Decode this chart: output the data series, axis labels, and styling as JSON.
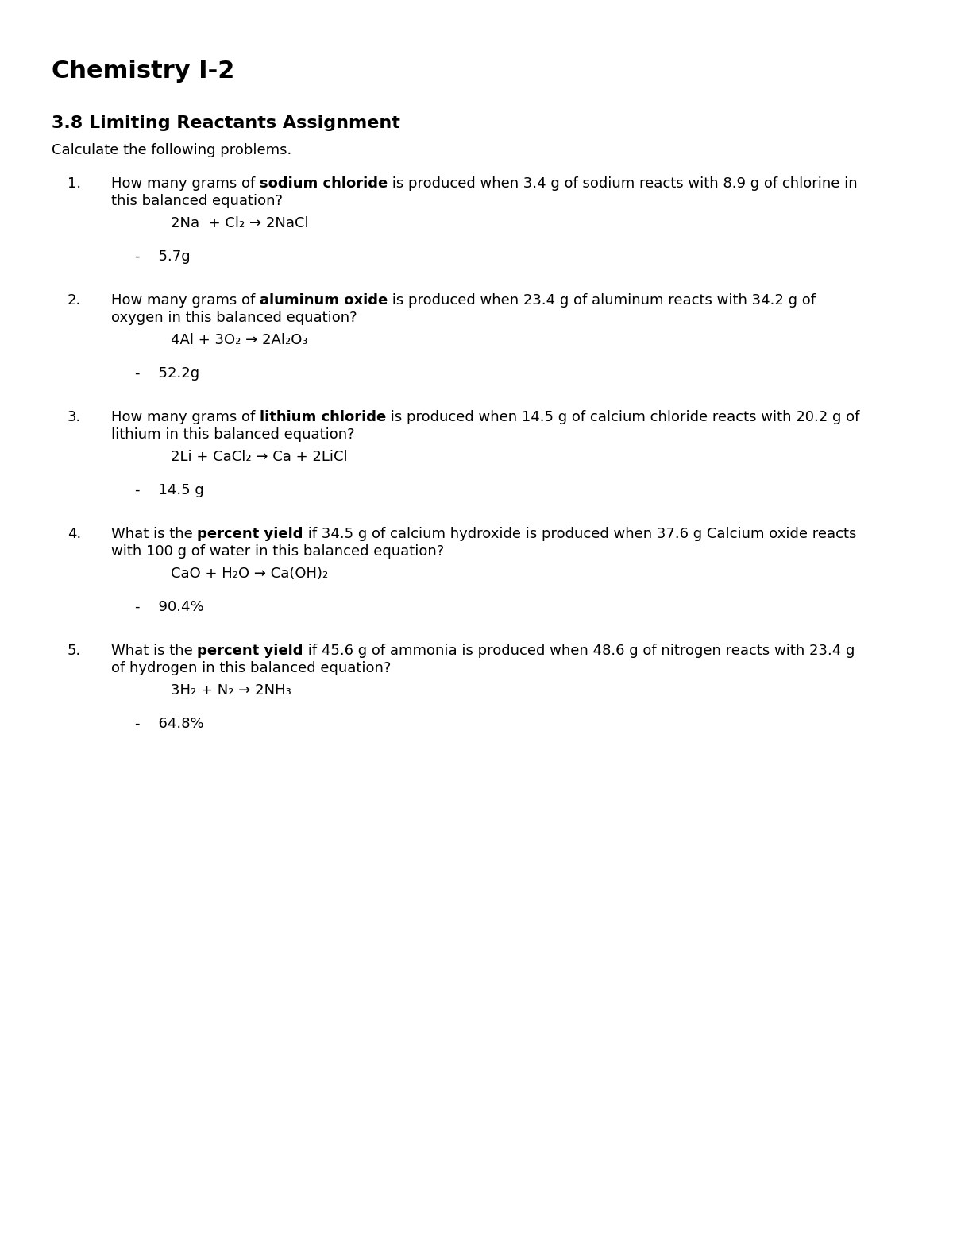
{
  "title": "Chemistry I-2",
  "subtitle": "3.8 Limiting Reactants Assignment",
  "intro": "Calculate the following problems.",
  "background": "#ffffff",
  "text_color": "#000000",
  "questions": [
    {
      "number": "1.",
      "q_line1": [
        {
          "text": "How many grams of ",
          "bold": false
        },
        {
          "text": "sodium chloride",
          "bold": true
        },
        {
          "text": " is produced when 3.4 g of sodium reacts with 8.9 g of chlorine in",
          "bold": false
        }
      ],
      "q_line2": "this balanced equation?",
      "equation": "2Na  + Cl₂ → 2NaCl",
      "answer": "-    5.7g"
    },
    {
      "number": "2.",
      "q_line1": [
        {
          "text": "How many grams of ",
          "bold": false
        },
        {
          "text": "aluminum oxide",
          "bold": true
        },
        {
          "text": " is produced when 23.4 g of aluminum reacts with 34.2 g of",
          "bold": false
        }
      ],
      "q_line2": "oxygen in this balanced equation?",
      "equation": "4Al + 3O₂ → 2Al₂O₃",
      "answer": "-    52.2g"
    },
    {
      "number": "3.",
      "q_line1": [
        {
          "text": "How many grams of ",
          "bold": false
        },
        {
          "text": "lithium chloride",
          "bold": true
        },
        {
          "text": " is produced when 14.5 g of calcium chloride reacts with 20.2 g of",
          "bold": false
        }
      ],
      "q_line2": "lithium in this balanced equation?",
      "equation": "2Li + CaCl₂ → Ca + 2LiCl",
      "answer": "-    14.5 g"
    },
    {
      "number": "4.",
      "q_line1": [
        {
          "text": "What is the ",
          "bold": false
        },
        {
          "text": "percent yield",
          "bold": true
        },
        {
          "text": " if 34.5 g of calcium hydroxide is produced when 37.6 g Calcium oxide reacts",
          "bold": false
        }
      ],
      "q_line2": "with 100 g of water in this balanced equation?",
      "equation": "CaO + H₂O → Ca(OH)₂",
      "answer": "-    90.4%"
    },
    {
      "number": "5.",
      "q_line1": [
        {
          "text": "What is the ",
          "bold": false
        },
        {
          "text": "percent yield",
          "bold": true
        },
        {
          "text": " if 45.6 g of ammonia is produced when 48.6 g of nitrogen reacts with 23.4 g",
          "bold": false
        }
      ],
      "q_line2": "of hydrogen in this balanced equation?",
      "equation": "3H₂ + N₂ → 2NH₃",
      "answer": "-    64.8%"
    }
  ]
}
